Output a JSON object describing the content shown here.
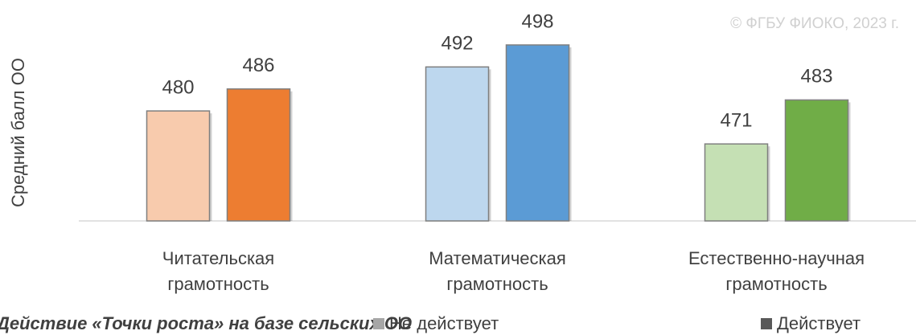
{
  "chart_data": {
    "type": "bar",
    "y_label": "Средний балл ОО",
    "watermark": "© ФГБУ ФИОКО, 2023 г.",
    "legend_title": "Действие «Точки роста» на базе сельских ОО",
    "categories": [
      "Читательская грамотность",
      "Математическая грамотность",
      "Естественно-научная грамотность"
    ],
    "series": [
      {
        "name": "Не действует",
        "color": "#a6a6a6",
        "colors": [
          "#f8cbad",
          "#bdd7ee",
          "#c5e0b4"
        ],
        "values": [
          480,
          492,
          471
        ]
      },
      {
        "name": "Действует",
        "color": "#595959",
        "colors": [
          "#ed7d31",
          "#5b9bd5",
          "#70ad47"
        ],
        "values": [
          486,
          498,
          483
        ]
      }
    ],
    "ylim": [
      450,
      505
    ],
    "legend": "bottom-right"
  }
}
